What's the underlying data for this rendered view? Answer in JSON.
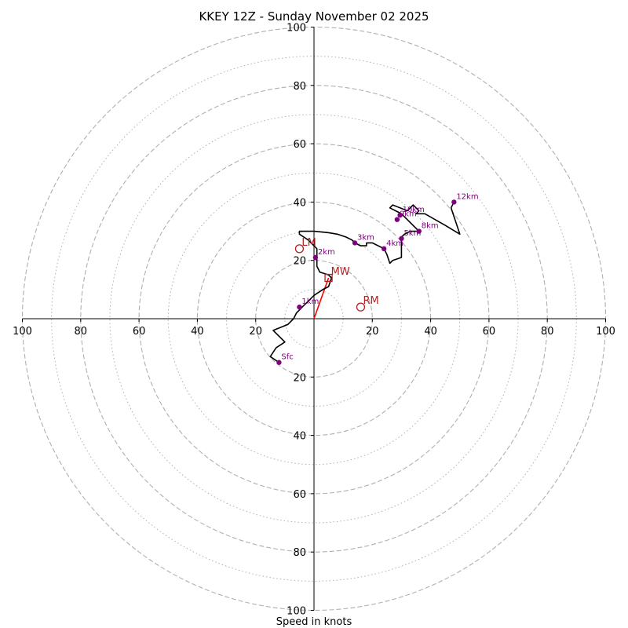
{
  "chart_data": {
    "type": "hodograph",
    "title": "KKEY 12Z - Sunday November 02 2025",
    "xlabel": "Speed in knots",
    "range": [
      -100,
      100
    ],
    "ring_major": [
      20,
      40,
      60,
      80,
      100
    ],
    "ring_minor": [
      10,
      30,
      50,
      70,
      90
    ],
    "x_ticks": [
      "100",
      "80",
      "60",
      "40",
      "20",
      "20",
      "40",
      "60",
      "80",
      "100"
    ],
    "x_tick_values": [
      -100,
      -80,
      -60,
      -40,
      -20,
      20,
      40,
      60,
      80,
      100
    ],
    "y_ticks": [
      "100",
      "80",
      "60",
      "40",
      "20",
      "20",
      "40",
      "60",
      "80",
      "100"
    ],
    "y_tick_values": [
      100,
      80,
      60,
      40,
      20,
      -20,
      -40,
      -60,
      -80,
      -100
    ],
    "colors": {
      "trace": "#000000",
      "markers": "#800080",
      "motion": "#b22222",
      "mean_wind_vector": "#ff0000",
      "grid": "#b0b0b0"
    },
    "trace": [
      [
        -12,
        -15
      ],
      [
        -15,
        -13
      ],
      [
        -13,
        -10
      ],
      [
        -10,
        -8
      ],
      [
        -14,
        -4
      ],
      [
        -9,
        -2
      ],
      [
        -8,
        -1
      ],
      [
        -7,
        0
      ],
      [
        -6,
        2
      ],
      [
        -5,
        3
      ],
      [
        -4,
        4
      ],
      [
        -2,
        6
      ],
      [
        0,
        8
      ],
      [
        3,
        10
      ],
      [
        5,
        11
      ],
      [
        6,
        14
      ],
      [
        5,
        15
      ],
      [
        2,
        16
      ],
      [
        1,
        18
      ],
      [
        1,
        21
      ],
      [
        1,
        24
      ],
      [
        -2,
        27
      ],
      [
        -5,
        29
      ],
      [
        -5,
        30
      ],
      [
        0,
        30
      ],
      [
        5,
        29.5
      ],
      [
        8,
        29
      ],
      [
        11,
        28
      ],
      [
        13,
        27
      ],
      [
        14,
        26
      ],
      [
        16,
        25
      ],
      [
        18,
        25
      ],
      [
        18,
        26
      ],
      [
        20,
        26
      ],
      [
        24,
        24
      ],
      [
        25,
        22
      ],
      [
        26,
        19
      ],
      [
        27,
        20
      ],
      [
        30,
        21
      ],
      [
        30,
        28
      ],
      [
        31,
        29
      ],
      [
        33,
        30
      ],
      [
        36,
        30
      ],
      [
        30,
        36
      ],
      [
        26,
        38
      ],
      [
        27,
        39
      ],
      [
        32,
        37
      ],
      [
        34,
        39
      ],
      [
        36,
        37
      ],
      [
        35,
        36
      ],
      [
        38,
        36
      ],
      [
        45,
        32
      ],
      [
        50,
        29
      ],
      [
        47,
        38
      ],
      [
        48,
        40
      ]
    ],
    "markers": [
      {
        "label": "Sfc",
        "u": -12,
        "v": -15
      },
      {
        "label": "1km",
        "u": -5,
        "v": 4
      },
      {
        "label": "2km",
        "u": 0.5,
        "v": 21
      },
      {
        "label": "3km",
        "u": 14,
        "v": 26
      },
      {
        "label": "4km",
        "u": 24,
        "v": 24
      },
      {
        "label": "5km",
        "u": 30,
        "v": 27.5
      },
      {
        "label": "8km",
        "u": 36,
        "v": 30
      },
      {
        "label": "9km",
        "u": 28.5,
        "v": 34
      },
      {
        "label": "10km",
        "u": 29.5,
        "v": 35.5
      },
      {
        "label": "12km",
        "u": 48,
        "v": 40
      }
    ],
    "storm_motion": [
      {
        "label": "LM",
        "u": -5,
        "v": 24,
        "shape": "circle"
      },
      {
        "label": "RM",
        "u": 16,
        "v": 4,
        "shape": "circle"
      },
      {
        "label": "MW",
        "u": 5,
        "v": 14,
        "shape": "square"
      }
    ],
    "mean_wind_vector": {
      "u": 5,
      "v": 14
    }
  }
}
